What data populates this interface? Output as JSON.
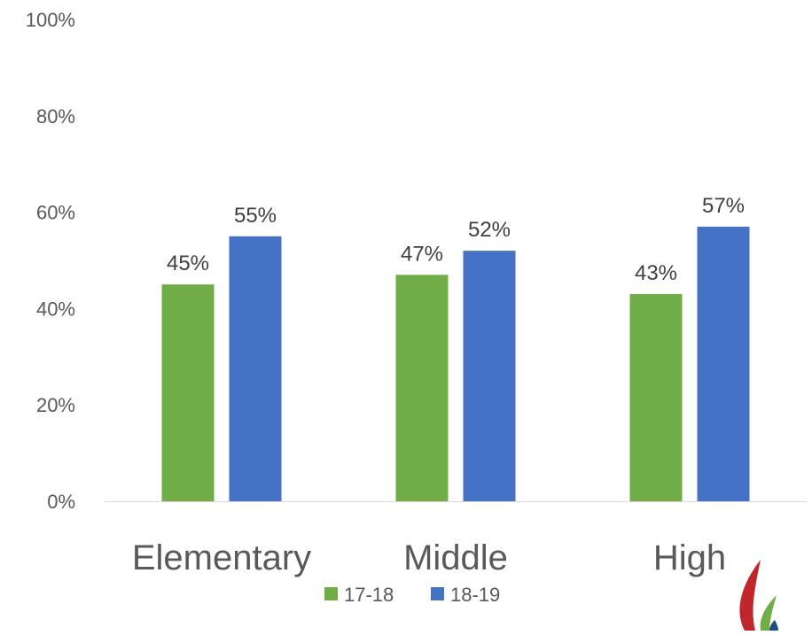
{
  "chart_data": {
    "type": "bar",
    "categories": [
      "Elementary",
      "Middle",
      "High"
    ],
    "series": [
      {
        "name": "17-18",
        "values": [
          45,
          47,
          43
        ],
        "color": "#70AD47",
        "labels": [
          "45%",
          "47%",
          "43%"
        ]
      },
      {
        "name": "18-19",
        "values": [
          55,
          52,
          57
        ],
        "color": "#4472C4",
        "labels": [
          "55%",
          "52%",
          "57%"
        ]
      }
    ],
    "ylim": [
      0,
      100
    ],
    "yticks": [
      0,
      20,
      40,
      60,
      80,
      100
    ],
    "ytick_labels": [
      "0%",
      "20%",
      "40%",
      "60%",
      "80%",
      "100%"
    ],
    "grid": false,
    "legend_position": "bottom",
    "title": "",
    "xlabel": "",
    "ylabel": ""
  },
  "logo": {
    "icon": "leaf-logo-icon",
    "colors": [
      "#C0272D",
      "#70AD47",
      "#1F4E79"
    ]
  }
}
